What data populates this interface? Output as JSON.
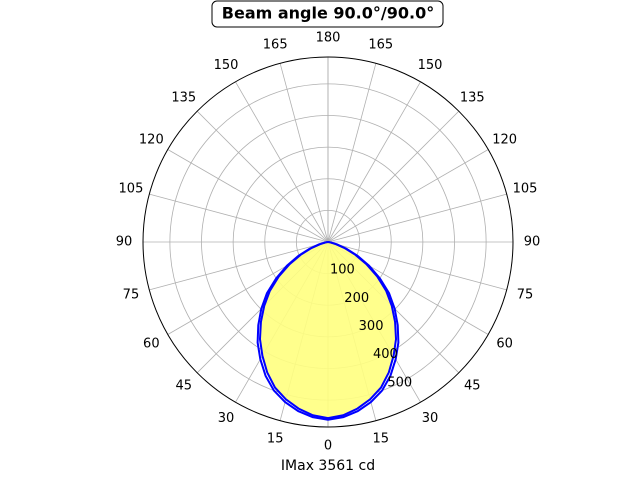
{
  "chart_data": {
    "type": "polar",
    "title": "Beam angle 90.0°/90.0°",
    "xlabel": "IMax 3561 cd",
    "x": [
      -90,
      -85,
      -80,
      -75,
      -70,
      -65,
      -60,
      -55,
      -50,
      -45,
      -40,
      -35,
      -30,
      -25,
      -20,
      -15,
      -10,
      -5,
      0,
      5,
      10,
      15,
      20,
      25,
      30,
      35,
      40,
      45,
      50,
      55,
      60,
      65,
      70,
      75,
      80,
      85,
      90
    ],
    "series": [
      {
        "color": "#0000ff",
        "fill": "#ffff80",
        "values": [
          0,
          2,
          8,
          25,
          55,
          95,
          140,
          190,
          240,
          285,
          330,
          375,
          415,
          455,
          490,
          515,
          535,
          550,
          557,
          550,
          535,
          515,
          490,
          455,
          415,
          375,
          330,
          285,
          240,
          190,
          140,
          95,
          55,
          25,
          8,
          2,
          0
        ]
      },
      {
        "color": "#0000ff",
        "values": [
          0,
          3,
          10,
          30,
          62,
          103,
          150,
          200,
          252,
          298,
          343,
          388,
          428,
          467,
          500,
          524,
          543,
          556,
          562,
          556,
          543,
          524,
          500,
          467,
          428,
          388,
          343,
          298,
          252,
          200,
          150,
          103,
          62,
          30,
          10,
          3,
          0
        ]
      }
    ],
    "rlim": [
      0,
      585
    ],
    "rticks": [
      100,
      200,
      300,
      400,
      500
    ],
    "thetaticks": [
      0,
      15,
      30,
      45,
      60,
      75,
      90,
      105,
      120,
      135,
      150,
      165,
      180
    ],
    "grid": true
  }
}
